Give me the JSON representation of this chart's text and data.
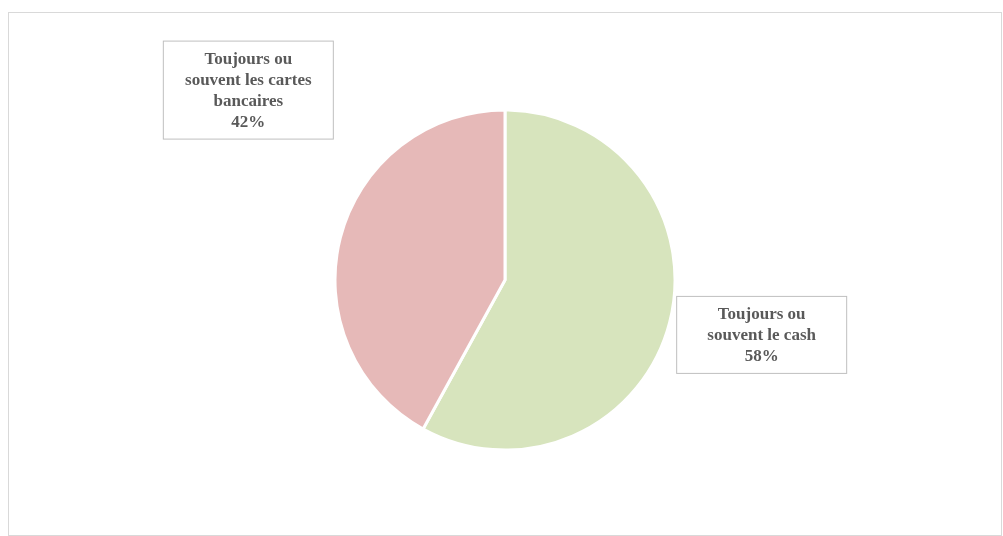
{
  "chart_data": {
    "type": "pie",
    "categories": [
      "Toujours ou souvent le cash",
      "Toujours ou souvent les cartes bancaires"
    ],
    "values": [
      58,
      42
    ],
    "colors": [
      "#d7e4bd",
      "#e6b9b8"
    ],
    "value_labels": [
      "58%",
      "42%"
    ]
  }
}
